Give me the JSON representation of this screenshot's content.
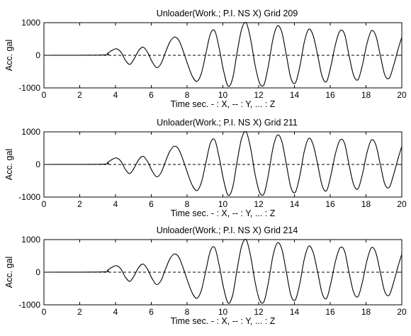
{
  "chart_data": [
    {
      "type": "line",
      "title": "Unloader(Work.; P.I. NS X)    Grid 209",
      "xlabel": "Time sec.  - : X, -- : Y, ... : Z",
      "ylabel": "Acc. gal",
      "xlim": [
        0,
        20
      ],
      "ylim": [
        -1000,
        1000
      ],
      "xticks": [
        "0",
        "2",
        "4",
        "6",
        "8",
        "10",
        "12",
        "14",
        "16",
        "18",
        "20"
      ],
      "yticks": [
        "1000",
        "0",
        "-1000"
      ],
      "grid": false,
      "series": [
        {
          "style": "solid",
          "x": [
            0,
            3.3,
            3.55,
            3.8,
            4.05,
            4.3,
            4.55,
            4.8,
            5.05,
            5.3,
            5.55,
            5.8,
            6.05,
            6.3,
            6.55,
            6.8,
            7.05,
            7.3,
            7.55,
            7.8,
            8.05,
            8.3,
            8.55,
            8.8,
            9.05,
            9.3,
            9.55,
            9.8,
            10.05,
            10.3,
            10.55,
            10.8,
            11.05,
            11.3,
            11.55,
            11.8,
            12.05,
            12.3,
            12.55,
            12.8,
            13.05,
            13.3,
            13.55,
            13.8,
            14.05,
            14.3,
            14.55,
            14.8,
            15.05,
            15.3,
            15.55,
            15.8,
            16.05,
            16.3,
            16.55,
            16.8,
            17.05,
            17.3,
            17.55,
            17.8,
            18.05,
            18.3,
            18.55,
            18.8,
            19.05,
            19.3,
            19.55,
            19.8,
            20.0
          ],
          "y": [
            0,
            10,
            60,
            150,
            200,
            100,
            -150,
            -280,
            -100,
            150,
            250,
            80,
            -200,
            -380,
            -250,
            100,
            420,
            560,
            450,
            100,
            -300,
            -650,
            -800,
            -550,
            50,
            650,
            750,
            200,
            -500,
            -950,
            -700,
            100,
            800,
            1000,
            500,
            -300,
            -850,
            -900,
            -300,
            500,
            900,
            700,
            0,
            -700,
            -850,
            -350,
            400,
            800,
            600,
            0,
            -650,
            -800,
            -300,
            350,
            750,
            650,
            0,
            -600,
            -750,
            -300,
            350,
            750,
            600,
            0,
            -600,
            -700,
            -300,
            200,
            550
          ]
        },
        {
          "style": "dashed",
          "x": [
            0,
            20
          ],
          "y": [
            0,
            0
          ]
        }
      ]
    },
    {
      "type": "line",
      "title": "Unloader(Work.; P.I. NS X)    Grid 211",
      "xlabel": "Time sec.  - : X, -- : Y, ... : Z",
      "ylabel": "Acc. gal",
      "xlim": [
        0,
        20
      ],
      "ylim": [
        -1000,
        1000
      ],
      "xticks": [
        "0",
        "2",
        "4",
        "6",
        "8",
        "10",
        "12",
        "14",
        "16",
        "18",
        "20"
      ],
      "yticks": [
        "1000",
        "0",
        "-1000"
      ],
      "grid": false,
      "series": [
        {
          "style": "solid",
          "x": [
            0,
            3.3,
            3.55,
            3.8,
            4.05,
            4.3,
            4.55,
            4.8,
            5.05,
            5.3,
            5.55,
            5.8,
            6.05,
            6.3,
            6.55,
            6.8,
            7.05,
            7.3,
            7.55,
            7.8,
            8.05,
            8.3,
            8.55,
            8.8,
            9.05,
            9.3,
            9.55,
            9.8,
            10.05,
            10.3,
            10.55,
            10.8,
            11.05,
            11.3,
            11.55,
            11.8,
            12.05,
            12.3,
            12.55,
            12.8,
            13.05,
            13.3,
            13.55,
            13.8,
            14.05,
            14.3,
            14.55,
            14.8,
            15.05,
            15.3,
            15.55,
            15.8,
            16.05,
            16.3,
            16.55,
            16.8,
            17.05,
            17.3,
            17.55,
            17.8,
            18.05,
            18.3,
            18.55,
            18.8,
            19.05,
            19.3,
            19.55,
            19.8,
            20.0
          ],
          "y": [
            0,
            10,
            60,
            150,
            200,
            100,
            -150,
            -280,
            -100,
            150,
            250,
            80,
            -200,
            -380,
            -250,
            100,
            420,
            560,
            450,
            100,
            -300,
            -650,
            -800,
            -550,
            50,
            650,
            750,
            200,
            -500,
            -950,
            -700,
            100,
            800,
            1000,
            500,
            -300,
            -850,
            -900,
            -300,
            500,
            900,
            700,
            0,
            -700,
            -850,
            -350,
            400,
            800,
            600,
            0,
            -650,
            -800,
            -300,
            350,
            750,
            650,
            0,
            -600,
            -750,
            -300,
            350,
            750,
            600,
            0,
            -600,
            -700,
            -300,
            200,
            550
          ]
        },
        {
          "style": "dashed",
          "x": [
            0,
            20
          ],
          "y": [
            0,
            0
          ]
        }
      ]
    },
    {
      "type": "line",
      "title": "Unloader(Work.; P.I. NS X)    Grid 214",
      "xlabel": "Time sec.  - : X, -- : Y, ... : Z",
      "ylabel": "Acc. gal",
      "xlim": [
        0,
        20
      ],
      "ylim": [
        -1000,
        1000
      ],
      "xticks": [
        "0",
        "2",
        "4",
        "6",
        "8",
        "10",
        "12",
        "14",
        "16",
        "18",
        "20"
      ],
      "yticks": [
        "1000",
        "0",
        "-1000"
      ],
      "grid": false,
      "series": [
        {
          "style": "solid",
          "x": [
            0,
            3.3,
            3.55,
            3.8,
            4.05,
            4.3,
            4.55,
            4.8,
            5.05,
            5.3,
            5.55,
            5.8,
            6.05,
            6.3,
            6.55,
            6.8,
            7.05,
            7.3,
            7.55,
            7.8,
            8.05,
            8.3,
            8.55,
            8.8,
            9.05,
            9.3,
            9.55,
            9.8,
            10.05,
            10.3,
            10.55,
            10.8,
            11.05,
            11.3,
            11.55,
            11.8,
            12.05,
            12.3,
            12.55,
            12.8,
            13.05,
            13.3,
            13.55,
            13.8,
            14.05,
            14.3,
            14.55,
            14.8,
            15.05,
            15.3,
            15.55,
            15.8,
            16.05,
            16.3,
            16.55,
            16.8,
            17.05,
            17.3,
            17.55,
            17.8,
            18.05,
            18.3,
            18.55,
            18.8,
            19.05,
            19.3,
            19.55,
            19.8,
            20.0
          ],
          "y": [
            0,
            10,
            60,
            150,
            200,
            100,
            -150,
            -280,
            -100,
            150,
            250,
            80,
            -200,
            -380,
            -250,
            100,
            420,
            560,
            450,
            100,
            -300,
            -650,
            -800,
            -550,
            50,
            650,
            750,
            200,
            -500,
            -950,
            -700,
            100,
            800,
            1000,
            500,
            -300,
            -850,
            -900,
            -300,
            500,
            900,
            700,
            0,
            -700,
            -850,
            -350,
            400,
            800,
            600,
            0,
            -650,
            -800,
            -300,
            350,
            750,
            650,
            0,
            -600,
            -750,
            -300,
            350,
            750,
            600,
            0,
            -600,
            -700,
            -300,
            200,
            550
          ]
        },
        {
          "style": "dashed",
          "x": [
            0,
            20
          ],
          "y": [
            0,
            0
          ]
        }
      ]
    }
  ]
}
